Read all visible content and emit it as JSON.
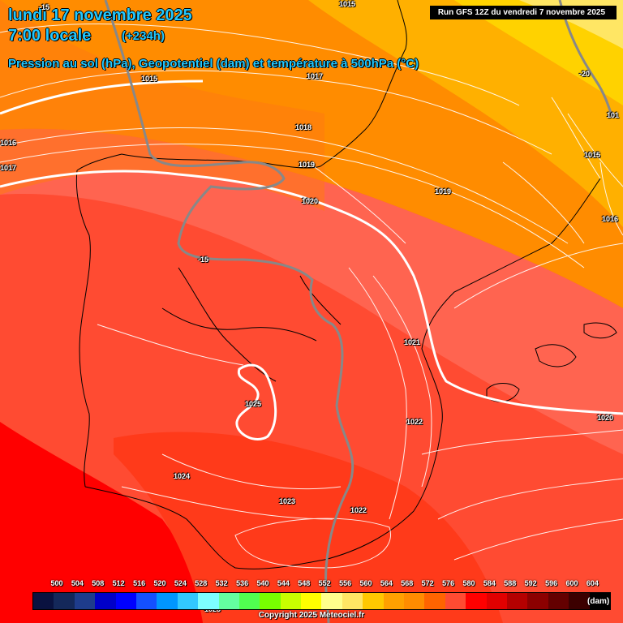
{
  "header": {
    "date_line": "lundi 17 novembre 2025",
    "time_line": "7:00 locale",
    "lead_time": "(+234h)",
    "subtitle": "Pression au sol (hPa), Geopotentiel (dam) et température à 500hPa (°C)",
    "run_info": "Run GFS 12Z du vendredi 7 novembre 2025"
  },
  "isobars": [
    {
      "label": "1015",
      "name": "isobar-label-1015-north"
    },
    {
      "label": "1015",
      "name": "isobar-label-1015-west"
    },
    {
      "label": "1016",
      "name": "isobar-label-1016-west"
    },
    {
      "label": "1017",
      "name": "isobar-label-1017-west"
    },
    {
      "label": "1017",
      "name": "isobar-label-1017-north"
    },
    {
      "label": "1018",
      "name": "isobar-label-1018"
    },
    {
      "label": "1019",
      "name": "isobar-label-1019-biscay"
    },
    {
      "label": "1019",
      "name": "isobar-label-1019-france"
    },
    {
      "label": "1020",
      "name": "isobar-label-1020-north"
    },
    {
      "label": "1020",
      "name": "isobar-label-1020-east"
    },
    {
      "label": "1021",
      "name": "isobar-label-1021"
    },
    {
      "label": "1022",
      "name": "isobar-label-1022-east"
    },
    {
      "label": "1022",
      "name": "isobar-label-1022-south"
    },
    {
      "label": "1023",
      "name": "isobar-label-1023"
    },
    {
      "label": "1024",
      "name": "isobar-label-1024"
    },
    {
      "label": "1025",
      "name": "isobar-label-1025-high"
    },
    {
      "label": "1025",
      "name": "isobar-label-1025-bottom"
    },
    {
      "label": "1016",
      "name": "isobar-label-1016-east"
    },
    {
      "label": "1015",
      "name": "isobar-label-1015-east"
    },
    {
      "label": "101",
      "name": "isobar-label-101-east"
    }
  ],
  "isotherms": [
    {
      "label": "-15",
      "name": "isotherm-label-minus15-top"
    },
    {
      "label": "-15",
      "name": "isotherm-label-minus15-iberia"
    },
    {
      "label": "-20",
      "name": "isotherm-label-minus20"
    }
  ],
  "legend": {
    "values": [
      "500",
      "504",
      "508",
      "512",
      "516",
      "520",
      "524",
      "528",
      "532",
      "536",
      "540",
      "544",
      "548",
      "552",
      "556",
      "560",
      "564",
      "568",
      "572",
      "576",
      "580",
      "584",
      "588",
      "592",
      "596",
      "600",
      "604"
    ],
    "colors": [
      "#0a1240",
      "#14285a",
      "#1e3c8c",
      "#0000c8",
      "#0000ff",
      "#1450ff",
      "#0096ff",
      "#32c8ff",
      "#7dffff",
      "#64ffa0",
      "#50ff50",
      "#78ff00",
      "#c8ff00",
      "#ffff00",
      "#ffff8c",
      "#ffe664",
      "#ffc800",
      "#ffa000",
      "#ff8c00",
      "#ff6400",
      "#ff4b32",
      "#ff0000",
      "#e10000",
      "#b40000",
      "#8c0000",
      "#640000",
      "#3c0000",
      "#000000"
    ],
    "unit": "(dam)"
  },
  "copyright": "Copyright 2025 Meteociel.fr"
}
